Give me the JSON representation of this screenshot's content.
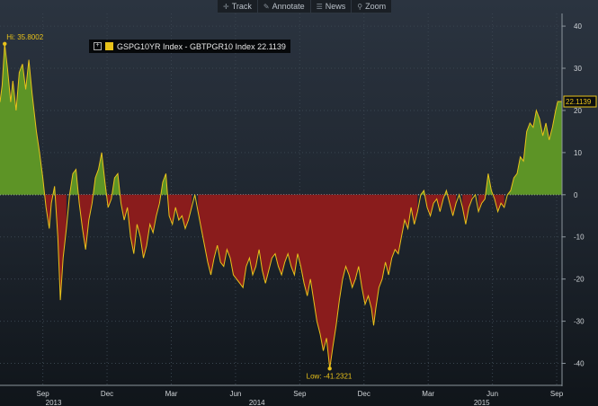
{
  "toolbar": {
    "track_label": "Track",
    "annotate_label": "Annotate",
    "news_label": "News",
    "zoom_label": "Zoom"
  },
  "legend": {
    "text": "GSPG10YR Index - GBTPGR10 Index 22.1139",
    "color": "#e8c21a"
  },
  "colors": {
    "positive_fill": "#5d9426",
    "negative_fill": "#8a1c1c",
    "line": "#e8c21a",
    "axis_text": "#d0d4d8",
    "grid": "#3a4550"
  },
  "chart_data": {
    "type": "area",
    "x_start": "2013-07",
    "ylim": [
      -45,
      43
    ],
    "yticks": [
      40,
      30,
      20,
      10,
      0,
      -10,
      -20,
      -30,
      -40
    ],
    "x_tick_labels": [
      {
        "t": 2.0,
        "label": "Sep"
      },
      {
        "t": 5.0,
        "label": "Dec"
      },
      {
        "t": 8.0,
        "label": "Mar"
      },
      {
        "t": 11.0,
        "label": "Jun"
      },
      {
        "t": 14.0,
        "label": "Sep"
      },
      {
        "t": 17.0,
        "label": "Dec"
      },
      {
        "t": 20.0,
        "label": "Mar"
      },
      {
        "t": 23.0,
        "label": "Jun"
      },
      {
        "t": 26.0,
        "label": "Sep"
      }
    ],
    "year_labels": [
      {
        "t": 2.5,
        "label": "2013"
      },
      {
        "t": 12.0,
        "label": "2014"
      },
      {
        "t": 22.5,
        "label": "2015"
      }
    ],
    "series": [
      {
        "name": "GSPG10YR Index - GBTPGR10 Index",
        "points": [
          [
            0.0,
            22
          ],
          [
            0.1,
            26
          ],
          [
            0.22,
            35.8
          ],
          [
            0.35,
            30
          ],
          [
            0.5,
            22
          ],
          [
            0.6,
            27
          ],
          [
            0.75,
            20
          ],
          [
            0.9,
            29
          ],
          [
            1.05,
            31
          ],
          [
            1.2,
            25
          ],
          [
            1.35,
            32
          ],
          [
            1.5,
            24
          ],
          [
            1.7,
            15
          ],
          [
            1.85,
            10
          ],
          [
            2.0,
            4
          ],
          [
            2.15,
            -3
          ],
          [
            2.3,
            -8
          ],
          [
            2.4,
            -2
          ],
          [
            2.55,
            2
          ],
          [
            2.7,
            -10
          ],
          [
            2.78,
            -20
          ],
          [
            2.82,
            -25
          ],
          [
            2.95,
            -15
          ],
          [
            3.1,
            -8
          ],
          [
            3.25,
            0
          ],
          [
            3.4,
            5
          ],
          [
            3.55,
            6
          ],
          [
            3.7,
            -2
          ],
          [
            3.85,
            -8
          ],
          [
            4.0,
            -13
          ],
          [
            4.15,
            -6
          ],
          [
            4.3,
            -2
          ],
          [
            4.45,
            4
          ],
          [
            4.6,
            6
          ],
          [
            4.75,
            10
          ],
          [
            4.9,
            3
          ],
          [
            5.05,
            -3
          ],
          [
            5.2,
            -1
          ],
          [
            5.35,
            4
          ],
          [
            5.5,
            5
          ],
          [
            5.65,
            -2
          ],
          [
            5.8,
            -6
          ],
          [
            5.95,
            -3
          ],
          [
            6.1,
            -10
          ],
          [
            6.25,
            -14
          ],
          [
            6.4,
            -7
          ],
          [
            6.55,
            -10
          ],
          [
            6.7,
            -15
          ],
          [
            6.85,
            -12
          ],
          [
            7.0,
            -7
          ],
          [
            7.15,
            -9
          ],
          [
            7.3,
            -5
          ],
          [
            7.45,
            -2
          ],
          [
            7.6,
            3
          ],
          [
            7.75,
            5
          ],
          [
            7.9,
            -5
          ],
          [
            8.05,
            -7
          ],
          [
            8.2,
            -3
          ],
          [
            8.35,
            -6
          ],
          [
            8.5,
            -5
          ],
          [
            8.65,
            -8
          ],
          [
            8.8,
            -6
          ],
          [
            8.95,
            -3
          ],
          [
            9.1,
            0
          ],
          [
            9.25,
            -4
          ],
          [
            9.4,
            -8
          ],
          [
            9.55,
            -12
          ],
          [
            9.7,
            -16
          ],
          [
            9.85,
            -19
          ],
          [
            10.0,
            -15
          ],
          [
            10.15,
            -12
          ],
          [
            10.3,
            -16
          ],
          [
            10.45,
            -17
          ],
          [
            10.6,
            -13
          ],
          [
            10.75,
            -15
          ],
          [
            10.9,
            -19
          ],
          [
            11.05,
            -20
          ],
          [
            11.2,
            -21
          ],
          [
            11.35,
            -22
          ],
          [
            11.5,
            -17
          ],
          [
            11.65,
            -15
          ],
          [
            11.8,
            -19
          ],
          [
            11.95,
            -17
          ],
          [
            12.1,
            -13
          ],
          [
            12.25,
            -18
          ],
          [
            12.4,
            -21
          ],
          [
            12.55,
            -18
          ],
          [
            12.7,
            -15
          ],
          [
            12.85,
            -14
          ],
          [
            13.0,
            -17
          ],
          [
            13.15,
            -19
          ],
          [
            13.3,
            -16
          ],
          [
            13.45,
            -14
          ],
          [
            13.6,
            -17
          ],
          [
            13.75,
            -19
          ],
          [
            13.9,
            -14
          ],
          [
            14.05,
            -17
          ],
          [
            14.2,
            -21
          ],
          [
            14.35,
            -24
          ],
          [
            14.5,
            -20
          ],
          [
            14.65,
            -25
          ],
          [
            14.8,
            -30
          ],
          [
            14.95,
            -33
          ],
          [
            15.1,
            -37
          ],
          [
            15.25,
            -34
          ],
          [
            15.4,
            -41.2321
          ],
          [
            15.55,
            -36
          ],
          [
            15.7,
            -31
          ],
          [
            15.85,
            -25
          ],
          [
            16.0,
            -20
          ],
          [
            16.15,
            -17
          ],
          [
            16.3,
            -19
          ],
          [
            16.45,
            -22
          ],
          [
            16.6,
            -20
          ],
          [
            16.75,
            -17
          ],
          [
            16.9,
            -22
          ],
          [
            17.05,
            -26
          ],
          [
            17.2,
            -24
          ],
          [
            17.35,
            -27
          ],
          [
            17.45,
            -31
          ],
          [
            17.55,
            -27
          ],
          [
            17.7,
            -22
          ],
          [
            17.85,
            -20
          ],
          [
            18.0,
            -16
          ],
          [
            18.15,
            -19
          ],
          [
            18.3,
            -15
          ],
          [
            18.45,
            -13
          ],
          [
            18.6,
            -14
          ],
          [
            18.75,
            -10
          ],
          [
            18.9,
            -6
          ],
          [
            19.05,
            -8
          ],
          [
            19.2,
            -3
          ],
          [
            19.35,
            -7
          ],
          [
            19.5,
            -4
          ],
          [
            19.65,
            0
          ],
          [
            19.8,
            1
          ],
          [
            19.95,
            -3
          ],
          [
            20.1,
            -5
          ],
          [
            20.25,
            -2
          ],
          [
            20.4,
            -1
          ],
          [
            20.55,
            -4
          ],
          [
            20.7,
            -1
          ],
          [
            20.85,
            1
          ],
          [
            21.0,
            -2
          ],
          [
            21.15,
            -5
          ],
          [
            21.3,
            -2
          ],
          [
            21.45,
            0
          ],
          [
            21.6,
            -3
          ],
          [
            21.75,
            -7
          ],
          [
            21.9,
            -3
          ],
          [
            22.05,
            -1
          ],
          [
            22.2,
            0
          ],
          [
            22.35,
            -4
          ],
          [
            22.5,
            -2
          ],
          [
            22.65,
            -1
          ],
          [
            22.8,
            5
          ],
          [
            22.95,
            1
          ],
          [
            23.1,
            -1
          ],
          [
            23.25,
            -4
          ],
          [
            23.4,
            -2
          ],
          [
            23.55,
            -3
          ],
          [
            23.7,
            0
          ],
          [
            23.85,
            1
          ],
          [
            24.0,
            4
          ],
          [
            24.15,
            5
          ],
          [
            24.3,
            9
          ],
          [
            24.45,
            8
          ],
          [
            24.6,
            15
          ],
          [
            24.75,
            17
          ],
          [
            24.9,
            16
          ],
          [
            25.05,
            20
          ],
          [
            25.2,
            18
          ],
          [
            25.35,
            14
          ],
          [
            25.5,
            17
          ],
          [
            25.65,
            13
          ],
          [
            25.8,
            16
          ],
          [
            25.95,
            20
          ],
          [
            26.05,
            22.1139
          ],
          [
            26.25,
            22.1139
          ]
        ]
      }
    ],
    "annotations": [
      {
        "t": 0.22,
        "y": 35.8,
        "label": "Hi: 35.8002"
      },
      {
        "t": 15.4,
        "y": -41.2321,
        "label": "Low: -41.2321"
      }
    ],
    "last_value": {
      "y": 22.1139,
      "label": "22.1139"
    }
  }
}
